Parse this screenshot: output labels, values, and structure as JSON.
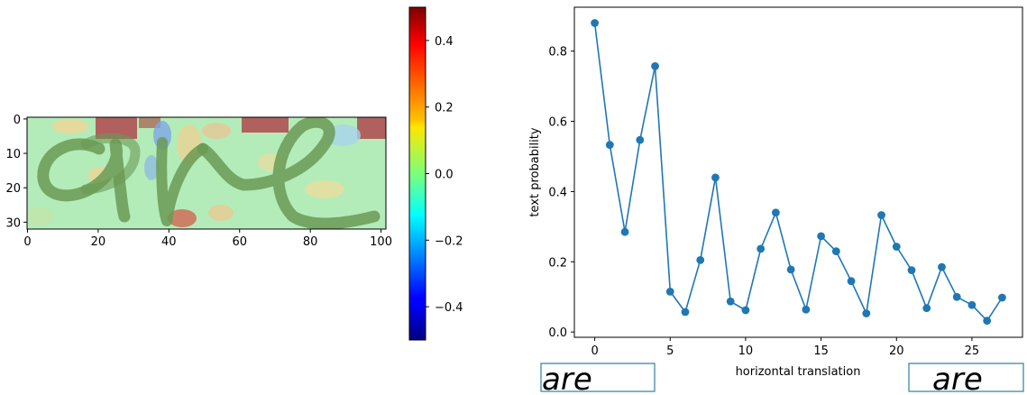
{
  "chart_data": [
    {
      "type": "heatmap",
      "title": "",
      "xlabel": "",
      "ylabel": "",
      "xlim": [
        0,
        101
      ],
      "ylim": [
        32,
        0
      ],
      "xticks": [
        0,
        20,
        40,
        60,
        80,
        100
      ],
      "xtick_labels": [
        "0",
        "20",
        "40",
        "60",
        "80",
        "100"
      ],
      "yticks": [
        0,
        10,
        20,
        30
      ],
      "ytick_labels": [
        "0",
        "10",
        "20",
        "30"
      ],
      "overlay_word": "are",
      "colormap": "jet",
      "colorbar": {
        "range": [
          -0.5,
          0.5
        ],
        "ticks": [
          0.4,
          0.2,
          0.0,
          -0.2,
          -0.4
        ],
        "tick_labels": [
          "0.4",
          "0.2",
          "0.0",
          "−0.2",
          "−0.4"
        ]
      }
    },
    {
      "type": "line",
      "title": "",
      "xlabel": "horizontal translation",
      "ylabel": "text probability",
      "xlim": [
        -1.35,
        28.35
      ],
      "ylim": [
        -0.015,
        0.925
      ],
      "xticks": [
        0,
        5,
        10,
        15,
        20,
        25
      ],
      "xtick_labels": [
        "0",
        "5",
        "10",
        "15",
        "20",
        "25"
      ],
      "yticks": [
        0.0,
        0.2,
        0.4,
        0.6,
        0.8
      ],
      "ytick_labels": [
        "0.0",
        "0.2",
        "0.4",
        "0.6",
        "0.8"
      ],
      "series": [
        {
          "name": "text probability",
          "color": "#1f77b4",
          "x": [
            0,
            1,
            2,
            3,
            4,
            5,
            6,
            7,
            8,
            9,
            10,
            11,
            12,
            13,
            14,
            15,
            16,
            17,
            18,
            19,
            20,
            21,
            22,
            23,
            24,
            25,
            26,
            27
          ],
          "values": [
            0.88,
            0.533,
            0.285,
            0.547,
            0.757,
            0.115,
            0.057,
            0.205,
            0.44,
            0.087,
            0.062,
            0.237,
            0.34,
            0.178,
            0.064,
            0.273,
            0.23,
            0.145,
            0.053,
            0.333,
            0.243,
            0.176,
            0.068,
            0.185,
            0.1,
            0.077,
            0.032,
            0.098
          ]
        }
      ],
      "thumbnails": [
        "are",
        "are"
      ]
    }
  ]
}
